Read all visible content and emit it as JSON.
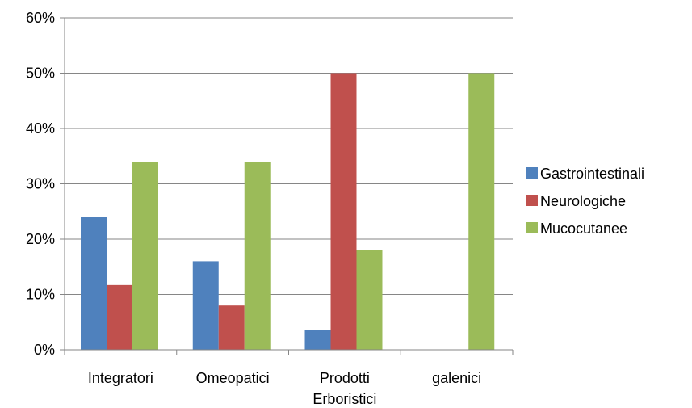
{
  "chart_data": {
    "type": "bar",
    "categories": [
      [
        "Integratori"
      ],
      [
        "Omeopatici"
      ],
      [
        "Prodotti",
        "Erboristici"
      ],
      [
        "galenici"
      ]
    ],
    "ylim": [
      0,
      60
    ],
    "yticks": [
      "0%",
      "10%",
      "20%",
      "30%",
      "40%",
      "50%",
      "60%"
    ],
    "grid": true,
    "legend_position": "right",
    "series": [
      {
        "name": "Gastrointestinali",
        "color": "#4F81BD",
        "values": [
          24,
          16,
          3.6,
          0
        ]
      },
      {
        "name": "Neurologiche",
        "color": "#C0504D",
        "values": [
          11.7,
          8,
          50,
          0
        ]
      },
      {
        "name": "Mucocutanee",
        "color": "#9BBB59",
        "values": [
          34,
          34,
          18,
          50
        ]
      }
    ]
  }
}
